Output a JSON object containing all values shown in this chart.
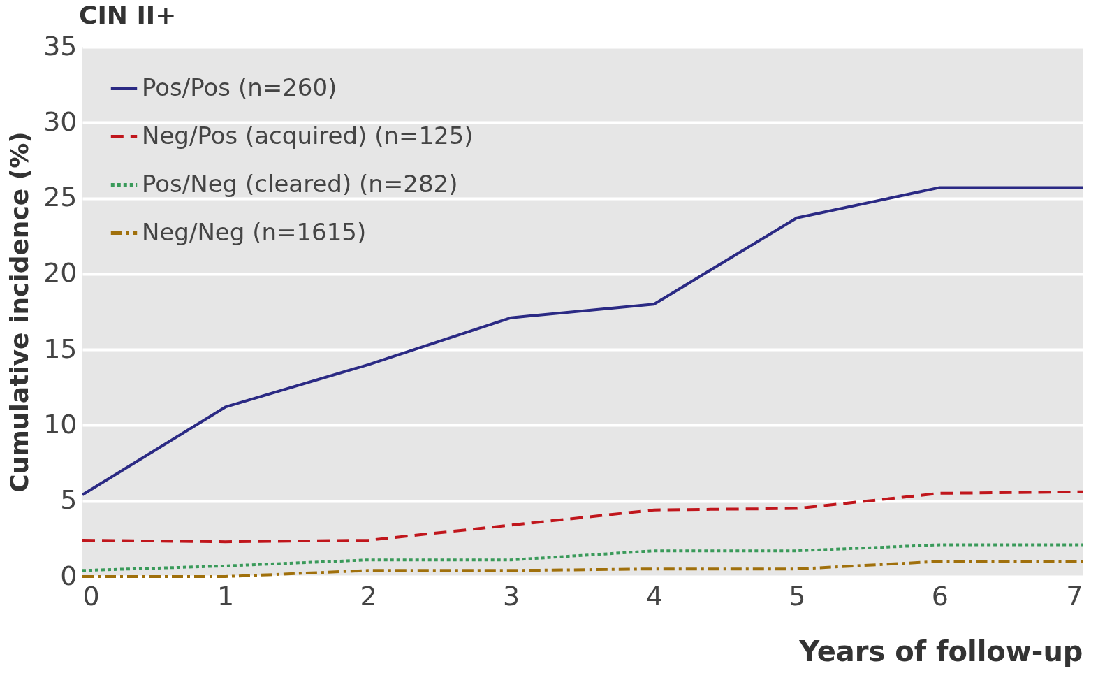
{
  "chart_data": {
    "type": "line",
    "title": "CIN II+",
    "xlabel": "Years of follow-up",
    "ylabel": "Cumulative incidence (%)",
    "x": [
      0,
      1,
      2,
      3,
      4,
      5,
      6,
      7
    ],
    "series": [
      {
        "name": "Pos/Pos (n=260)",
        "color": "#2b2a84",
        "line_style": "solid",
        "values": [
          5.4,
          11.2,
          14.0,
          17.1,
          18.0,
          23.7,
          25.7,
          25.7
        ]
      },
      {
        "name": "Neg/Pos (acquired) (n=125)",
        "color": "#c0161c",
        "line_style": "dashed",
        "values": [
          2.4,
          2.3,
          2.4,
          3.4,
          4.4,
          4.5,
          5.5,
          5.6
        ]
      },
      {
        "name": "Pos/Neg (cleared) (n=282)",
        "color": "#3a9a5a",
        "line_style": "dotted",
        "values": [
          0.4,
          0.7,
          1.1,
          1.1,
          1.7,
          1.7,
          2.1,
          2.1
        ]
      },
      {
        "name": "Neg/Neg (n=1615)",
        "color": "#a0700c",
        "line_style": "dashdot",
        "values": [
          0.0,
          0.0,
          0.4,
          0.4,
          0.5,
          0.5,
          1.0,
          1.0
        ]
      }
    ],
    "xlim": [
      0,
      7
    ],
    "xticks": [
      0,
      1,
      2,
      3,
      4,
      5,
      6,
      7
    ],
    "ylim": [
      0,
      35
    ],
    "yticks": [
      0,
      5,
      10,
      15,
      20,
      25,
      30,
      35
    ],
    "grid": "y",
    "legend": "top left",
    "marker": "none"
  }
}
